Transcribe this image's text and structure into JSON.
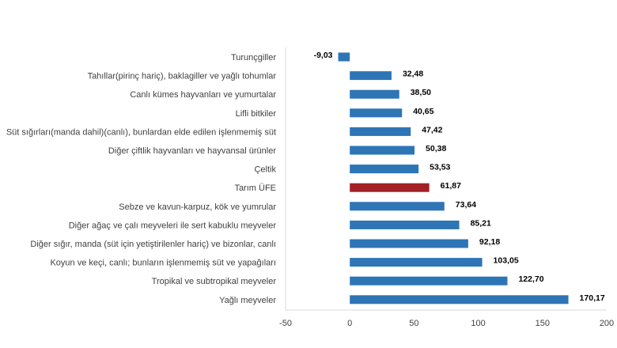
{
  "chart_data": {
    "type": "bar",
    "orientation": "horizontal",
    "categories": [
      "Turunçgiller",
      "Tahıllar(pirinç hariç), baklagiller ve yağlı tohumlar",
      "Canlı kümes hayvanları ve yumurtalar",
      "Lifli bitkiler",
      "Süt sığırları(manda dahil)(canlı), bunlardan elde edilen işlenmemiş süt",
      "Diğer çiftlik hayvanları ve hayvansal ürünler",
      "Çeltik",
      "Tarım ÜFE",
      "Sebze ve kavun-karpuz, kök ve yumrular",
      "Diğer ağaç ve çalı meyveleri ile sert kabuklu meyveler",
      "Diğer sığır, manda (süt için yetiştirilenler hariç) ve bizonlar, canlı",
      "Koyun ve keçi, canlı; bunların işlenmemiş süt ve yapağıları",
      "Tropikal ve subtropikal meyveler",
      "Yağlı meyveler"
    ],
    "values": [
      -9.03,
      32.48,
      38.5,
      40.65,
      47.42,
      50.38,
      53.53,
      61.87,
      73.64,
      85.21,
      92.18,
      103.05,
      122.7,
      170.17
    ],
    "value_labels": [
      "-9,03",
      "32,48",
      "38,50",
      "40,65",
      "47,42",
      "50,38",
      "53,53",
      "61,87",
      "73,64",
      "85,21",
      "92,18",
      "103,05",
      "122,70",
      "170,17"
    ],
    "highlight_index": 7,
    "xlim": [
      -50,
      200
    ],
    "xticks": [
      -50,
      0,
      50,
      100,
      150,
      200
    ],
    "xtick_labels": [
      "-50",
      "0",
      "50",
      "100",
      "150",
      "200"
    ],
    "title": "",
    "xlabel": "",
    "ylabel": "",
    "grid": false,
    "colors": {
      "bar": "#2e75b6",
      "highlight": "#a31f26",
      "axis": "#d9d9d9"
    }
  }
}
